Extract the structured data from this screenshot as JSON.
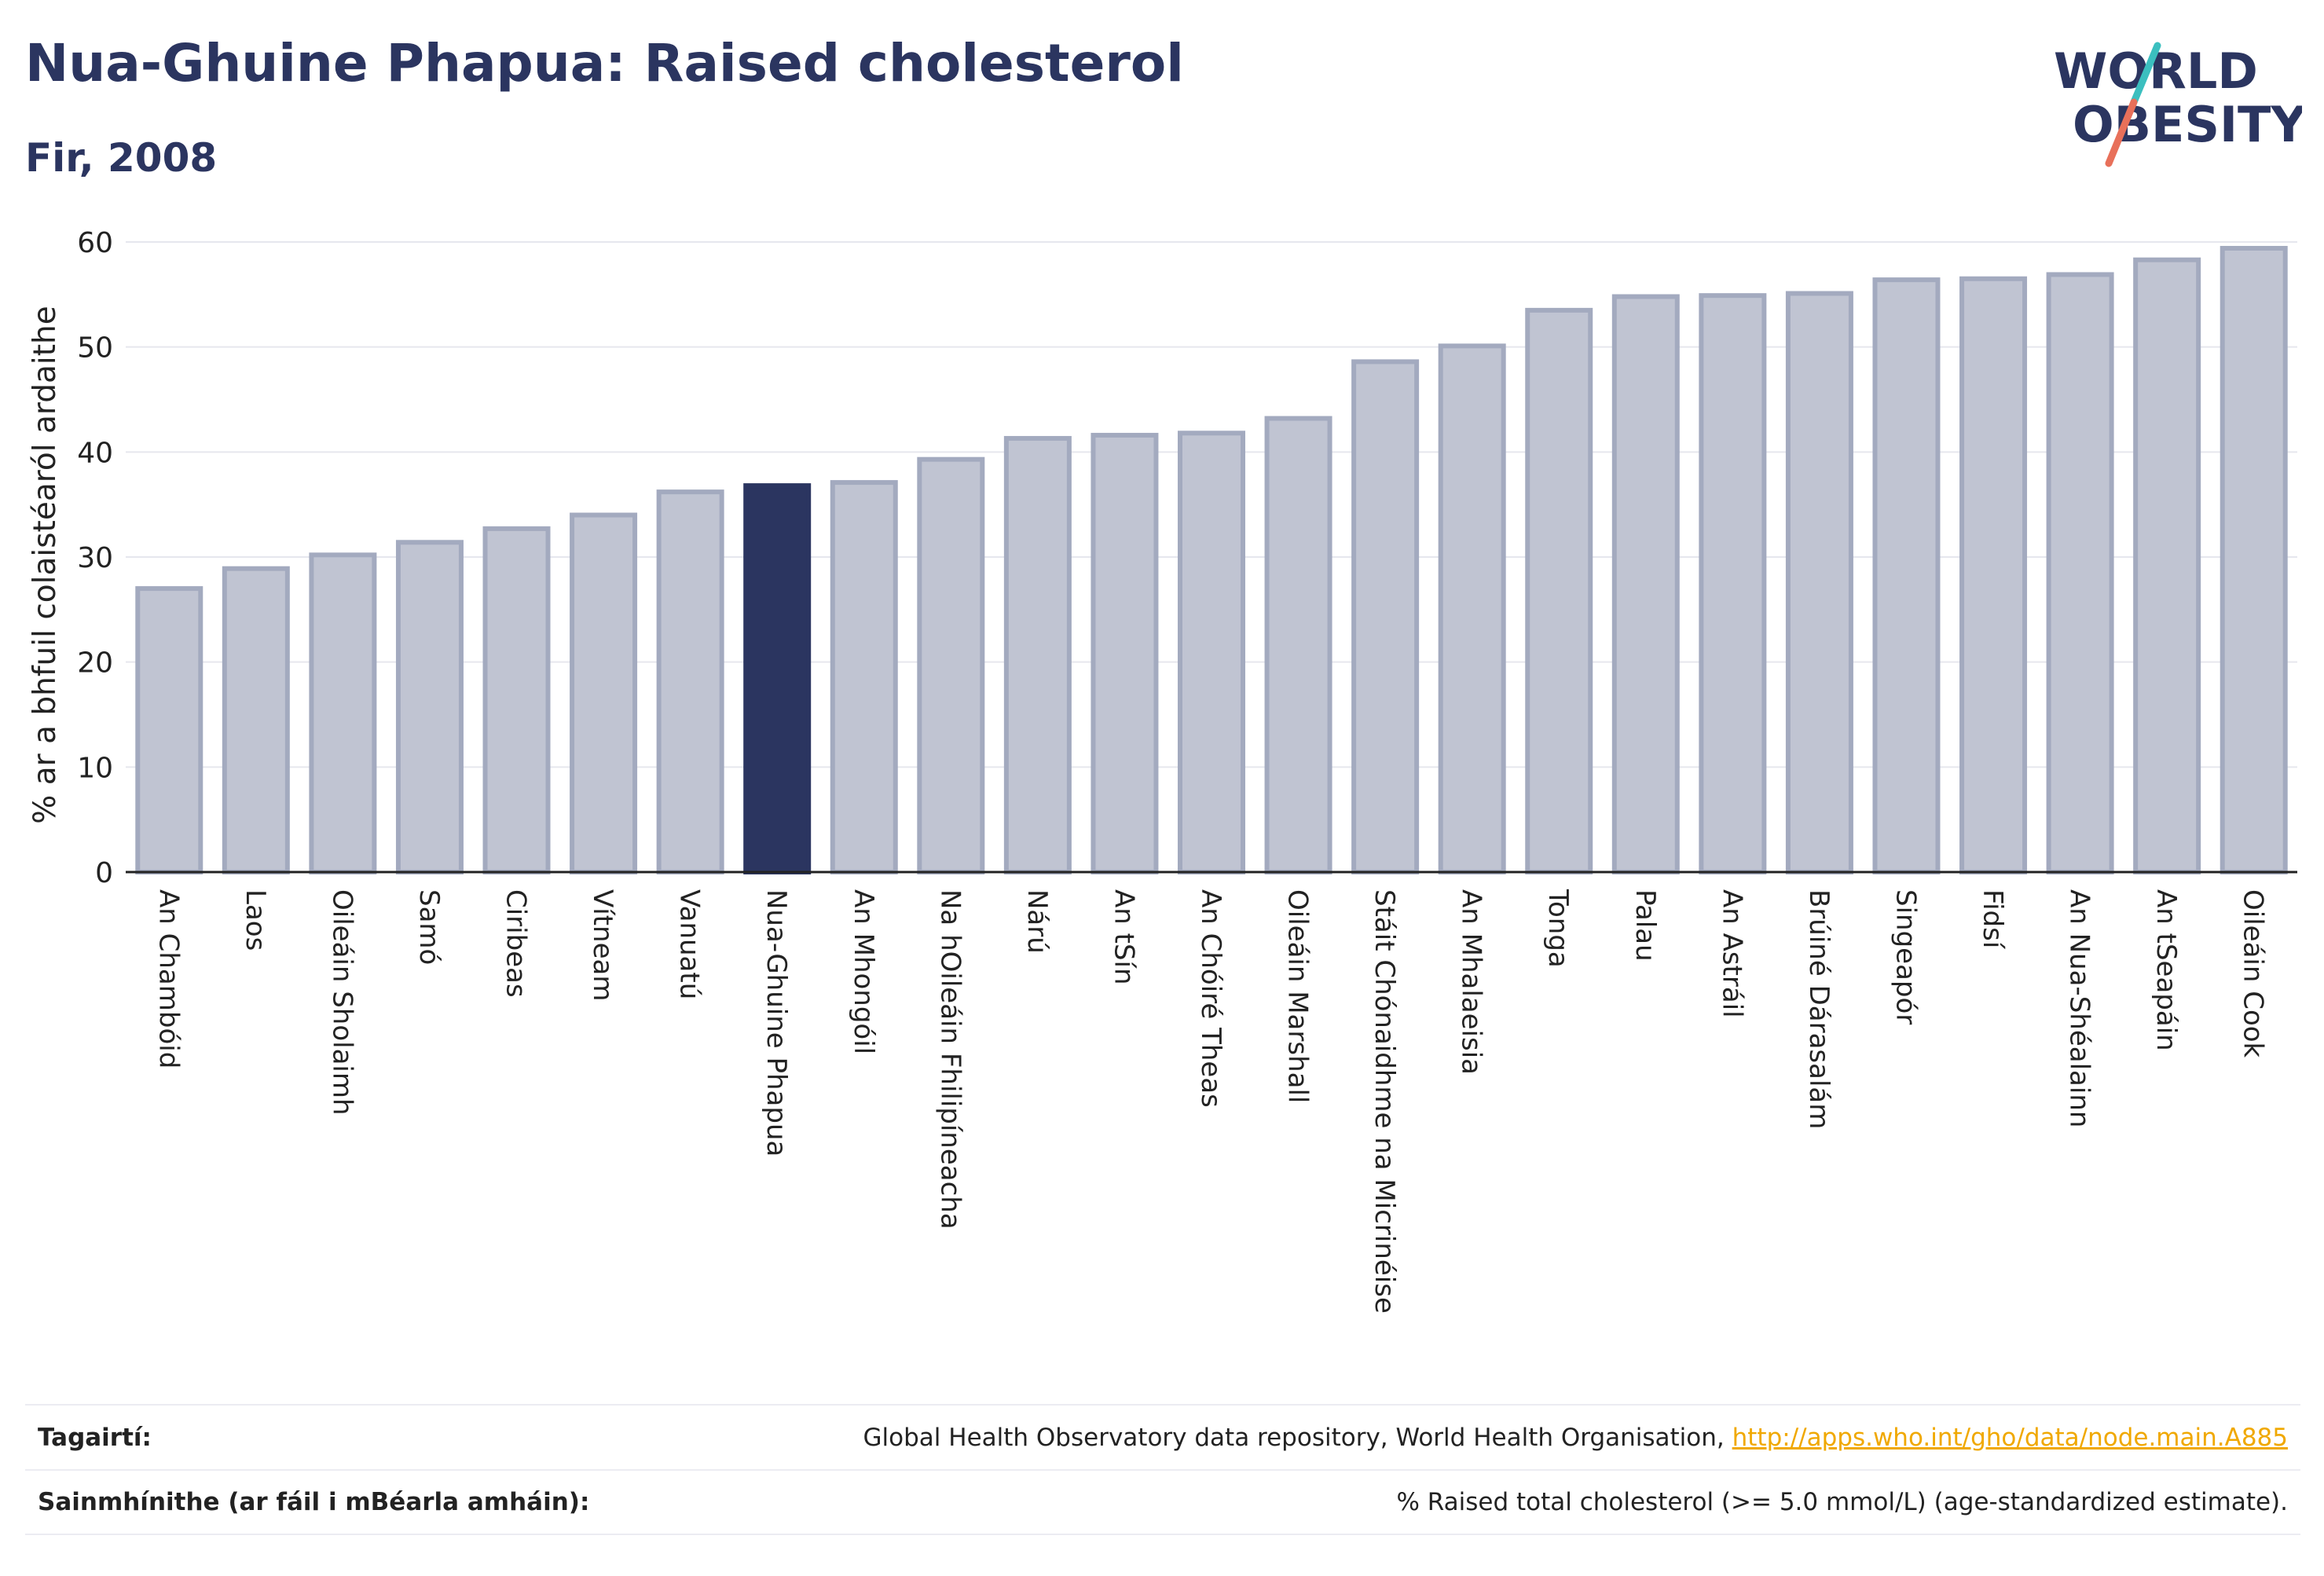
{
  "header": {
    "title": "Nua-Ghuine Phapua: Raised cholesterol",
    "subtitle": "Fir, 2008",
    "logo_line1": "WORLD",
    "logo_line2": "OBESITY"
  },
  "colors": {
    "title": "#2b3560",
    "bar_default": "#c0c4d2",
    "bar_default_stroke": "#a3aabf",
    "bar_highlight": "#2b3560",
    "logo_teal": "#3bbfbf",
    "logo_coral": "#e8705a",
    "link": "#f0a800"
  },
  "chart_data": {
    "type": "bar",
    "title": "Nua-Ghuine Phapua: Raised cholesterol",
    "subtitle": "Fir, 2008",
    "ylabel": "% ar a bhfuil colaistéaról ardaithe",
    "xlabel": "",
    "ylim": [
      0,
      60
    ],
    "yticks": [
      0,
      10,
      20,
      30,
      40,
      50,
      60
    ],
    "grid": true,
    "highlight": "Nua-Ghuine Phapua",
    "categories": [
      "An Chambóid",
      "Laos",
      "Oileáin Sholaimh",
      "Samó",
      "Ciribeas",
      "Vítneam",
      "Vanuatú",
      "Nua-Ghuine Phapua",
      "An Mhongóil",
      "Na hOileáin Fhilipíneacha",
      "Nárú",
      "An tSín",
      "An Chóiré Theas",
      "Oileáin Marshall",
      "Stáit Chónaidhme na Micrinéise",
      "An Mhalaeisia",
      "Tonga",
      "Palau",
      "An Astráil",
      "Brúiné Dárasalám",
      "Singeapór",
      "Fidsí",
      "An Nua-Shéalainn",
      "An tSeapáin",
      "Oileáin Cook"
    ],
    "values": [
      27.0,
      28.9,
      30.2,
      31.4,
      32.7,
      34.0,
      36.2,
      36.8,
      37.1,
      39.3,
      41.3,
      41.6,
      41.8,
      43.2,
      48.6,
      50.1,
      53.5,
      54.8,
      54.9,
      55.1,
      56.4,
      56.5,
      56.9,
      58.3,
      59.4
    ]
  },
  "footer": {
    "references_label": "Tagairtí:",
    "references_text": "Global Health Observatory data repository, World Health Organisation,",
    "references_link": "http://apps.who.int/gho/data/node.main.A885",
    "definitions_label": "Sainmhínithe (ar fáil i mBéarla amháin):",
    "definitions_text": "% Raised total cholesterol (>= 5.0 mmol/L) (age-standardized estimate)."
  }
}
